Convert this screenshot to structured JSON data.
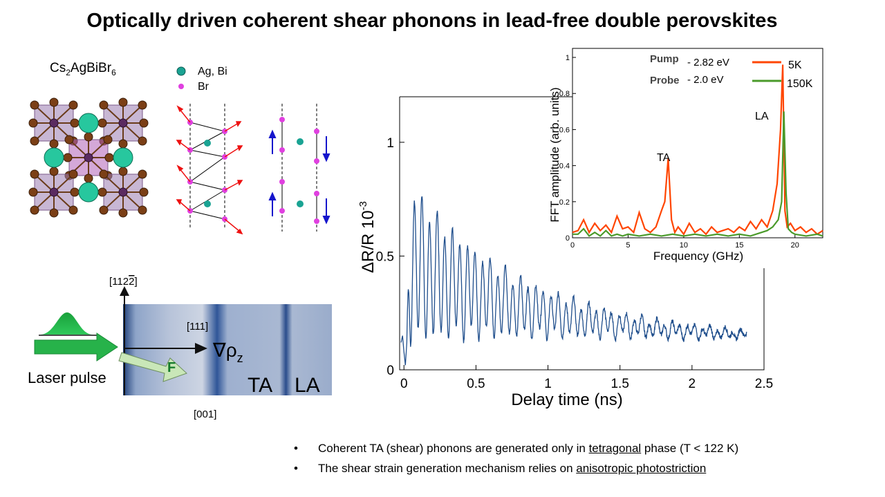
{
  "title": "Optically driven coherent shear phonons in lead-free double perovskites",
  "crystal": {
    "formula_main": "Cs",
    "formula_sub1": "2",
    "formula_mid": "AgBiBr",
    "formula_sub2": "6",
    "legend": [
      {
        "label": "Ag, Bi",
        "color": "#1aa393"
      },
      {
        "label": "Br",
        "color": "#e040e0"
      }
    ]
  },
  "schematic": {
    "direction_top": "[112",
    "direction_top_bar": "2",
    "direction_top_end": "]",
    "direction_mid": "[111]",
    "direction_bottom": "[001]",
    "gradient_label": "∇ρ",
    "gradient_sub": "z",
    "force_label": "F",
    "wave_ta": "TA",
    "wave_la": "LA",
    "laser_label": "Laser pulse"
  },
  "chart_data": [
    {
      "type": "line",
      "xlabel": "Delay time (ns)",
      "ylabel_main": "ΔR/R 10",
      "ylabel_exp": "-3",
      "xlim": [
        -0.03,
        2.5
      ],
      "ylim": [
        0,
        1.2
      ],
      "xticks": [
        "0",
        "0.5",
        "1",
        "1.5",
        "2",
        "2.5"
      ],
      "yticks": [
        "0",
        "0.5",
        "1"
      ],
      "series": [
        {
          "color": "#1f4e8c",
          "pre_time_zero": [
            {
              "x": -0.02,
              "y": 0.12
            },
            {
              "x": -0.01,
              "y": 0.15
            },
            {
              "x": 0.0,
              "y": 0.08
            },
            {
              "x": 0.01,
              "y": 0.02
            },
            {
              "x": 0.02,
              "y": 0.12
            }
          ],
          "model": {
            "t0": 0.02,
            "baseline_start": 0.48,
            "baseline_end": 0.13,
            "baseline_tau": 0.9,
            "la_freq_ghz": 19.0,
            "la_amp_start": 0.33,
            "la_amp_tau": 0.75,
            "ta_freq_ghz": 8.5,
            "ta_amp": 0.05,
            "t_end": 2.38
          }
        }
      ]
    },
    {
      "type": "line",
      "xlabel": "Frequency (GHz)",
      "ylabel": "FFT amplitude (arb. units)",
      "xlim": [
        0,
        22.5
      ],
      "ylim": [
        0,
        1.05
      ],
      "xticks": [
        "0",
        "5",
        "10",
        "15",
        "20"
      ],
      "yticks": [
        "0",
        "0.2",
        "0.4",
        "0.6",
        "0.8",
        "1"
      ],
      "annotations": {
        "ta": "TA",
        "la": "LA"
      },
      "pump_label": "Pump",
      "pump_value": "- 2.82 eV",
      "probe_label": "Probe",
      "probe_value": "- 2.0 eV",
      "series": [
        {
          "name": "5K",
          "color": "#ff4500",
          "x": [
            0,
            0.5,
            1,
            1.5,
            2,
            2.5,
            3,
            3.5,
            4,
            4.5,
            5,
            5.5,
            6,
            6.5,
            7,
            7.5,
            8,
            8.3,
            8.6,
            8.9,
            9.2,
            9.5,
            10,
            10.5,
            11,
            11.5,
            12,
            12.5,
            13,
            13.5,
            14,
            14.5,
            15,
            15.5,
            16,
            16.5,
            17,
            17.5,
            18,
            18.4,
            18.7,
            18.9,
            19.1,
            19.3,
            19.6,
            20,
            20.5,
            21,
            21.5,
            22,
            22.5
          ],
          "y": [
            0.03,
            0.04,
            0.1,
            0.03,
            0.08,
            0.04,
            0.07,
            0.03,
            0.12,
            0.05,
            0.06,
            0.03,
            0.14,
            0.05,
            0.03,
            0.06,
            0.15,
            0.2,
            0.44,
            0.1,
            0.03,
            0.06,
            0.02,
            0.08,
            0.03,
            0.05,
            0.02,
            0.06,
            0.03,
            0.04,
            0.05,
            0.03,
            0.06,
            0.04,
            0.09,
            0.05,
            0.1,
            0.06,
            0.15,
            0.3,
            0.6,
            0.96,
            0.15,
            0.06,
            0.08,
            0.04,
            0.06,
            0.03,
            0.05,
            0.02,
            0.04
          ]
        },
        {
          "name": "150K",
          "color": "#4a9a2a",
          "x": [
            0,
            0.5,
            1,
            1.5,
            2,
            2.5,
            3,
            3.5,
            4,
            4.5,
            5,
            6,
            7,
            8,
            9,
            10,
            11,
            12,
            13,
            14,
            15,
            16,
            17,
            17.5,
            18,
            18.5,
            18.8,
            19.0,
            19.2,
            19.4,
            19.7,
            20,
            21,
            22,
            22.5
          ],
          "y": [
            0.02,
            0.02,
            0.05,
            0.01,
            0.03,
            0.01,
            0.04,
            0.01,
            0.02,
            0.01,
            0.02,
            0.01,
            0.02,
            0.01,
            0.02,
            0.01,
            0.02,
            0.01,
            0.02,
            0.01,
            0.02,
            0.01,
            0.03,
            0.04,
            0.06,
            0.1,
            0.2,
            0.7,
            0.25,
            0.05,
            0.03,
            0.02,
            0.01,
            0.02,
            0.01
          ]
        }
      ]
    }
  ],
  "bullets": [
    {
      "marker": "•",
      "before": "Coherent TA (shear) phonons are generated only in ",
      "underlined": "tetragonal",
      "after": " phase (T < 122 K)"
    },
    {
      "marker": "•",
      "before": "The shear strain generation mechanism relies on ",
      "underlined": "anisotropic photostriction",
      "after": ""
    }
  ]
}
